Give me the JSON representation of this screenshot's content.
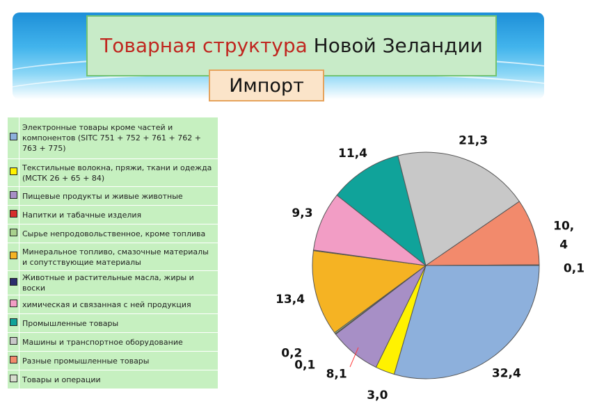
{
  "header": {
    "title_accent": "Товарная структура",
    "title_rest": " Новой Зеландии",
    "subtitle": "Импорт"
  },
  "chart_data": {
    "type": "pie",
    "categories": [
      "Электронные товары кроме частей и компонентов (SITC 751 + 752 + 761 + 762 + 763 + 775)",
      "Текстильные волокна, пряжи, ткани и одежда (МСТК 26 + 65 + 84)",
      "Пищевые продукты и живые животные",
      "Напитки и табачные изделия",
      "Сырье непродовольственное, кроме топлива",
      "Минеральное топливо, смазочные материалы и сопутствующие материалы",
      "Животные и растительные масла, жиры и воски",
      "химическая и связанная с ней продукция",
      "Промышленные товары",
      "Машины и транспортное оборудование",
      "Разные промышленные товары",
      "Товары и операции"
    ],
    "values": [
      32.4,
      3.0,
      8.1,
      0.1,
      0.2,
      13.4,
      0.1,
      9.3,
      11.4,
      21.3,
      10.4,
      0.1
    ],
    "value_labels": [
      "32,4",
      "3,0",
      "8,1",
      "0,1",
      "0,2",
      "13,4",
      "",
      "9,3",
      "11,4",
      "21,3",
      "10,\n4",
      "0,1"
    ],
    "colors": [
      "#8db0dc",
      "#fff200",
      "#a78fc6",
      "#d72e2e",
      "#a9d18e",
      "#f5b323",
      "#2c2c6e",
      "#f29dc5",
      "#10a39a",
      "#c8c8c8",
      "#f28a6c",
      "#d6dccd"
    ],
    "legend_placement": "left"
  }
}
